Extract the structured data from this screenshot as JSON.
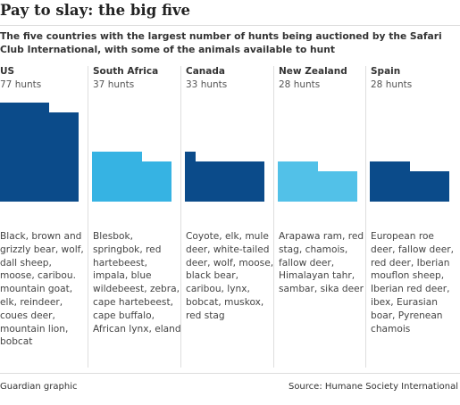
{
  "title": "Pay to slay: the big five",
  "subtitle": "The five countries with the largest number of hunts being auctioned by the Safari Club International, with some of the animals available to hunt",
  "chart_data": {
    "type": "waffle",
    "unit": "hunts",
    "series": [
      {
        "country": "US",
        "hunts_label": "77 hunts",
        "value": 77,
        "color": "#0b4b8a",
        "animals": "Black, brown and grizzly bear, wolf, dall sheep, moose, caribou. mountain goat, elk, reindeer, coues deer, mountain lion, bobcat"
      },
      {
        "country": "South Africa",
        "hunts_label": "37 hunts",
        "value": 37,
        "color": "#36b3e3",
        "animals": "Blesbok, springbok, red hartebeest, impala, blue wildebeest, zebra, cape hartebeest, cape buffalo, African lynx, eland"
      },
      {
        "country": "Canada",
        "hunts_label": "33 hunts",
        "value": 33,
        "color": "#0b4b8a",
        "animals": "Coyote, elk, mule deer, white-tailed deer, wolf, moose, black bear, caribou, lynx, bobcat, muskox, red stag"
      },
      {
        "country": "New Zealand",
        "hunts_label": "28 hunts",
        "value": 28,
        "color": "#52c1e8",
        "animals": "Arapawa ram, red stag, chamois, fallow deer, Himalayan tahr, sambar, sika deer"
      },
      {
        "country": "Spain",
        "hunts_label": "28 hunts",
        "value": 28,
        "color": "#0b4b8a",
        "animals": "European roe deer, fallow deer, red deer, Iberian mouflon sheep, Iberian red deer, ibex, Eurasian boar, Pyrenean chamois"
      }
    ]
  },
  "footer": {
    "credit": "Guardian graphic",
    "source": "Source: Humane Society International"
  }
}
